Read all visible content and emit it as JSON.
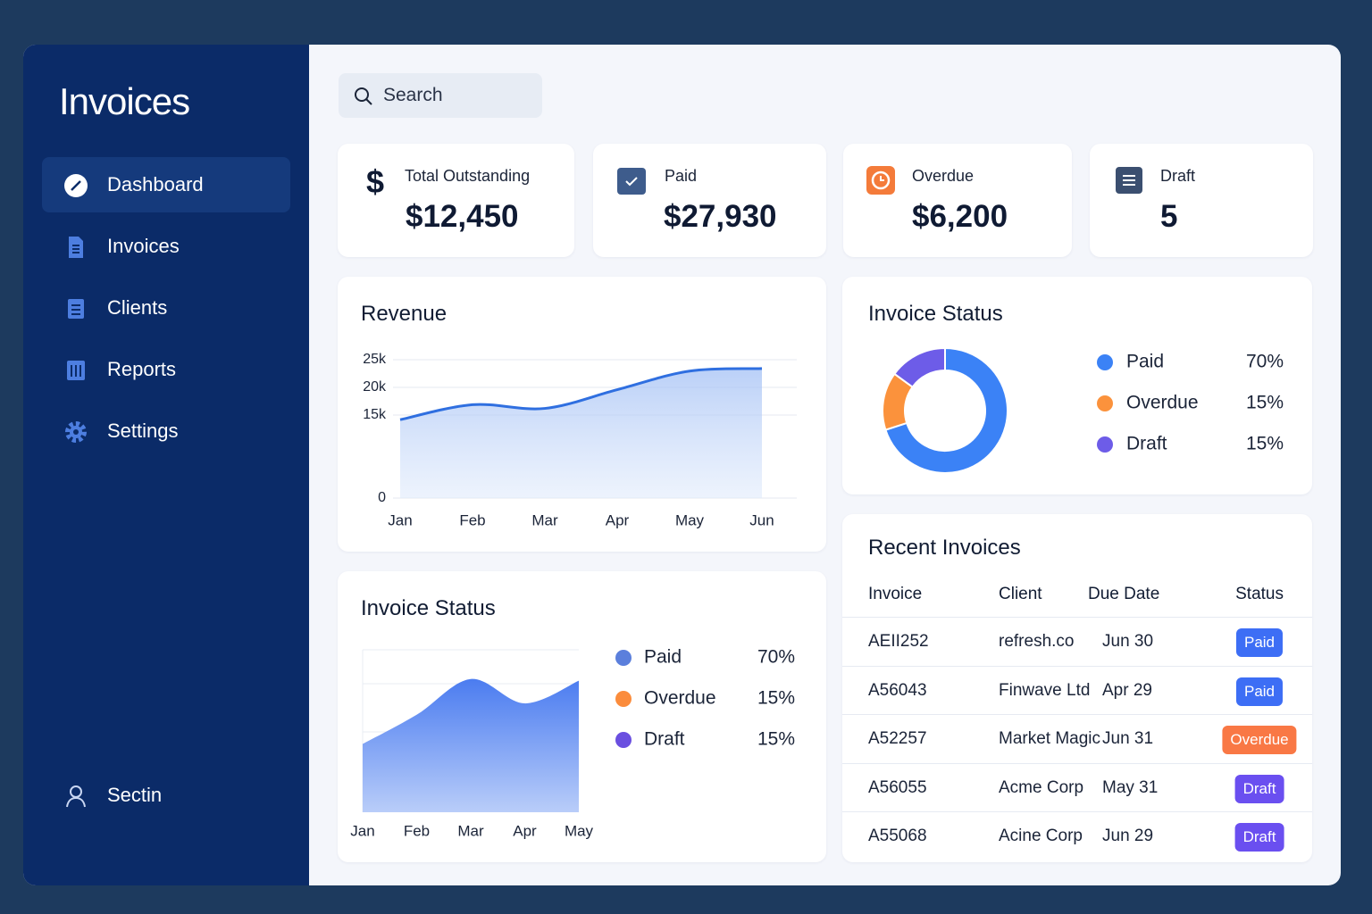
{
  "sidebar": {
    "title": "Invoices",
    "nav": [
      "Dashboard",
      "Invoices",
      "Clients",
      "Reports",
      "Settings"
    ],
    "active": 0,
    "user": "Sectin"
  },
  "search": {
    "placeholder": "Search"
  },
  "cards": [
    {
      "icon": "$",
      "label": "Total Outstanding",
      "value": "$12,450"
    },
    {
      "label": "Paid",
      "value": "$27,930"
    },
    {
      "label": "Overdue",
      "value": "$6,200"
    },
    {
      "label": "Draft",
      "value": 5
    }
  ],
  "chart_data": [
    {
      "type": "line",
      "title": "Revenue",
      "categories": [
        "Jan",
        "Feb",
        "Mar",
        "Apr",
        "May",
        "Jun"
      ],
      "values": [
        14160,
        16870,
        16200,
        19580,
        22950,
        23400
      ],
      "color": "#2f6fe0",
      "ylim": [
        0,
        25000
      ],
      "yticks": [
        0,
        {
          "value": 15000,
          "label": "15k"
        },
        {
          "value": 20000,
          "label": "20k"
        },
        {
          "value": 25000,
          "label": "25k"
        }
      ],
      "grid": true
    },
    {
      "type": "donut",
      "title": "Invoice Status",
      "categories": [
        "Paid",
        "Overdue",
        "Draft"
      ],
      "values": [
        70,
        15,
        15
      ],
      "value_labels": [
        "70%",
        "15%",
        "15%"
      ],
      "colors": [
        "#3b82f6",
        "#fb923c",
        "#6d5ce8"
      ]
    },
    {
      "type": "area",
      "title": "Invoice Status",
      "categories": [
        "Jan",
        "Feb",
        "Mar",
        "Apr",
        "May"
      ],
      "values": [
        42,
        60,
        82,
        67,
        81
      ],
      "ylim": [
        0,
        100
      ],
      "color": "#4f7ff0",
      "legend": {
        "names": [
          "Paid",
          "Overdue",
          "Draft"
        ],
        "labels": [
          "70%",
          "15%",
          "15%"
        ],
        "colors": [
          "#5b7fdc",
          "#fb8c3c",
          "#6a4fe0"
        ]
      }
    }
  ],
  "recent_invoices": {
    "title": "Recent Invoices",
    "columns": [
      "Invoice",
      "Client",
      "Due Date",
      "Status"
    ],
    "rows": [
      [
        "AEII252",
        "refresh.co",
        "Jun 30",
        "Paid"
      ],
      [
        "A56043",
        "Finwave Ltd",
        "Apr 29",
        "Paid"
      ],
      [
        "A52257",
        "Market Magic",
        "Jun 31",
        "Overdue"
      ],
      [
        "A56055",
        "Acme Corp",
        "May 31",
        "Draft"
      ],
      [
        "A55068",
        "Acine Corp",
        "Jun 29",
        "Draft"
      ]
    ],
    "status_colors": {
      "Paid": "#3d6ef5",
      "Overdue": "#f97845",
      "Draft": "#6a4ff0"
    }
  }
}
